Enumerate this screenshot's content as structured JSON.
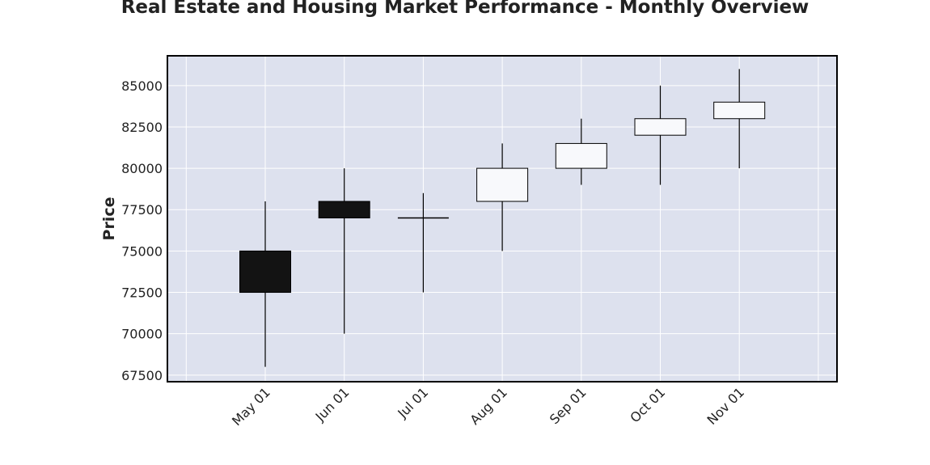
{
  "chart_data": {
    "type": "candlestick",
    "title": "Real Estate and Housing Market Performance - Monthly Overview",
    "xlabel": "",
    "ylabel": "Price",
    "ylim": [
      67100,
      86800
    ],
    "yticks": [
      67500,
      70000,
      72500,
      75000,
      77500,
      80000,
      82500,
      85000
    ],
    "grid": true,
    "colors": {
      "plot_background": "#dde1ee",
      "grid": "#ffffff",
      "up_fill": "#f8f9fc",
      "down_fill": "#131313",
      "edge": "#000000"
    },
    "categories": [
      "May 01",
      "Jun 01",
      "Jul 01",
      "Aug 01",
      "Sep 01",
      "Oct 01",
      "Nov 01"
    ],
    "ohlc": [
      {
        "open": 75000,
        "high": 78000,
        "low": 68000,
        "close": 72500
      },
      {
        "open": 78000,
        "high": 80000,
        "low": 70000,
        "close": 77000
      },
      {
        "open": 77000,
        "high": 78500,
        "low": 72500,
        "close": 77000
      },
      {
        "open": 78000,
        "high": 81500,
        "low": 75000,
        "close": 80000
      },
      {
        "open": 80000,
        "high": 83000,
        "low": 79000,
        "close": 81500
      },
      {
        "open": 82000,
        "high": 85000,
        "low": 79000,
        "close": 83000
      },
      {
        "open": 83000,
        "high": 86000,
        "low": 80000,
        "close": 84000
      }
    ]
  }
}
